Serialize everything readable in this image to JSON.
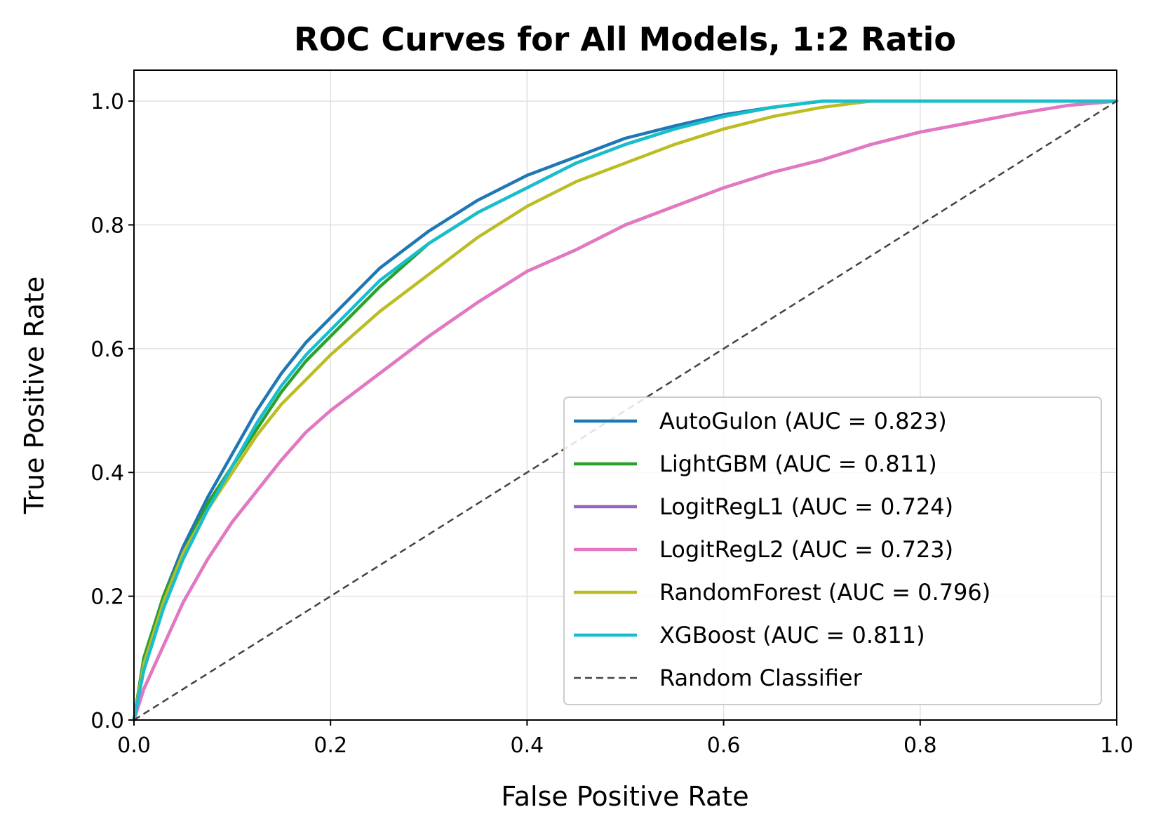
{
  "chart_data": {
    "type": "line",
    "title": "ROC Curves for All Models, 1:2 Ratio",
    "xlabel": "False Positive Rate",
    "ylabel": "True Positive Rate",
    "xlim": [
      0,
      1
    ],
    "ylim": [
      0,
      1.05
    ],
    "xticks": [
      "0.0",
      "0.2",
      "0.4",
      "0.6",
      "0.8",
      "1.0"
    ],
    "yticks": [
      "0.0",
      "0.2",
      "0.4",
      "0.6",
      "0.8",
      "1.0"
    ],
    "grid": true,
    "legend_position": "lower-right",
    "series": [
      {
        "name": "AutoGulon (AUC = 0.823)",
        "color": "#1f77b4",
        "x": [
          0,
          0.01,
          0.03,
          0.05,
          0.075,
          0.1,
          0.125,
          0.15,
          0.175,
          0.2,
          0.25,
          0.3,
          0.35,
          0.4,
          0.45,
          0.5,
          0.55,
          0.6,
          0.65,
          0.7,
          0.75,
          0.8,
          0.9,
          1.0
        ],
        "y": [
          0,
          0.1,
          0.2,
          0.28,
          0.36,
          0.43,
          0.5,
          0.56,
          0.61,
          0.65,
          0.73,
          0.79,
          0.84,
          0.88,
          0.91,
          0.94,
          0.96,
          0.978,
          0.99,
          1.0,
          1.0,
          1.0,
          1.0,
          1.0
        ]
      },
      {
        "name": "LightGBM (AUC = 0.811)",
        "color": "#2ca02c",
        "x": [
          0,
          0.01,
          0.03,
          0.05,
          0.075,
          0.1,
          0.125,
          0.15,
          0.175,
          0.2,
          0.25,
          0.3,
          0.35,
          0.4,
          0.45,
          0.5,
          0.55,
          0.6,
          0.65,
          0.7,
          0.75,
          0.8,
          0.9,
          1.0
        ],
        "y": [
          0,
          0.1,
          0.2,
          0.27,
          0.35,
          0.41,
          0.47,
          0.53,
          0.58,
          0.62,
          0.7,
          0.77,
          0.82,
          0.86,
          0.9,
          0.93,
          0.955,
          0.975,
          0.99,
          1.0,
          1.0,
          1.0,
          1.0,
          1.0
        ]
      },
      {
        "name": "LogitRegL1 (AUC = 0.724)",
        "color": "#9467bd",
        "x": [
          0,
          0.01,
          0.03,
          0.05,
          0.075,
          0.1,
          0.125,
          0.15,
          0.175,
          0.2,
          0.25,
          0.3,
          0.35,
          0.4,
          0.45,
          0.5,
          0.55,
          0.6,
          0.65,
          0.7,
          0.75,
          0.8,
          0.85,
          0.9,
          0.95,
          1.0
        ],
        "y": [
          0,
          0.05,
          0.12,
          0.19,
          0.26,
          0.32,
          0.37,
          0.42,
          0.465,
          0.5,
          0.56,
          0.62,
          0.675,
          0.725,
          0.76,
          0.8,
          0.83,
          0.86,
          0.885,
          0.905,
          0.93,
          0.95,
          0.965,
          0.98,
          0.993,
          1.0
        ]
      },
      {
        "name": "LogitRegL2 (AUC = 0.723)",
        "color": "#e377c2",
        "x": [
          0,
          0.01,
          0.03,
          0.05,
          0.075,
          0.1,
          0.125,
          0.15,
          0.175,
          0.2,
          0.25,
          0.3,
          0.35,
          0.4,
          0.45,
          0.5,
          0.55,
          0.6,
          0.65,
          0.7,
          0.75,
          0.8,
          0.85,
          0.9,
          0.95,
          1.0
        ],
        "y": [
          0,
          0.05,
          0.12,
          0.19,
          0.26,
          0.32,
          0.37,
          0.42,
          0.465,
          0.5,
          0.56,
          0.62,
          0.675,
          0.725,
          0.76,
          0.8,
          0.83,
          0.86,
          0.885,
          0.905,
          0.93,
          0.95,
          0.965,
          0.98,
          0.993,
          1.0
        ]
      },
      {
        "name": "RandomForest (AUC = 0.796)",
        "color": "#bcbd22",
        "x": [
          0,
          0.01,
          0.03,
          0.05,
          0.075,
          0.1,
          0.125,
          0.15,
          0.175,
          0.2,
          0.25,
          0.3,
          0.35,
          0.4,
          0.45,
          0.5,
          0.55,
          0.6,
          0.65,
          0.7,
          0.75,
          0.8,
          0.9,
          1.0
        ],
        "y": [
          0,
          0.09,
          0.19,
          0.27,
          0.34,
          0.4,
          0.46,
          0.51,
          0.55,
          0.59,
          0.66,
          0.72,
          0.78,
          0.83,
          0.87,
          0.9,
          0.93,
          0.955,
          0.975,
          0.99,
          1.0,
          1.0,
          1.0,
          1.0
        ]
      },
      {
        "name": "XGBoost (AUC = 0.811)",
        "color": "#17becf",
        "x": [
          0,
          0.01,
          0.03,
          0.05,
          0.075,
          0.1,
          0.125,
          0.15,
          0.175,
          0.2,
          0.25,
          0.3,
          0.35,
          0.4,
          0.45,
          0.5,
          0.55,
          0.6,
          0.65,
          0.7,
          0.75,
          0.8,
          0.9,
          1.0
        ],
        "y": [
          0,
          0.08,
          0.18,
          0.26,
          0.34,
          0.41,
          0.48,
          0.54,
          0.59,
          0.63,
          0.71,
          0.77,
          0.82,
          0.86,
          0.9,
          0.93,
          0.955,
          0.975,
          0.99,
          1.0,
          1.0,
          1.0,
          1.0,
          1.0
        ]
      },
      {
        "name": "Random Classifier",
        "color": "#444444",
        "dashed": true,
        "x": [
          0,
          1
        ],
        "y": [
          0,
          1
        ]
      }
    ]
  }
}
